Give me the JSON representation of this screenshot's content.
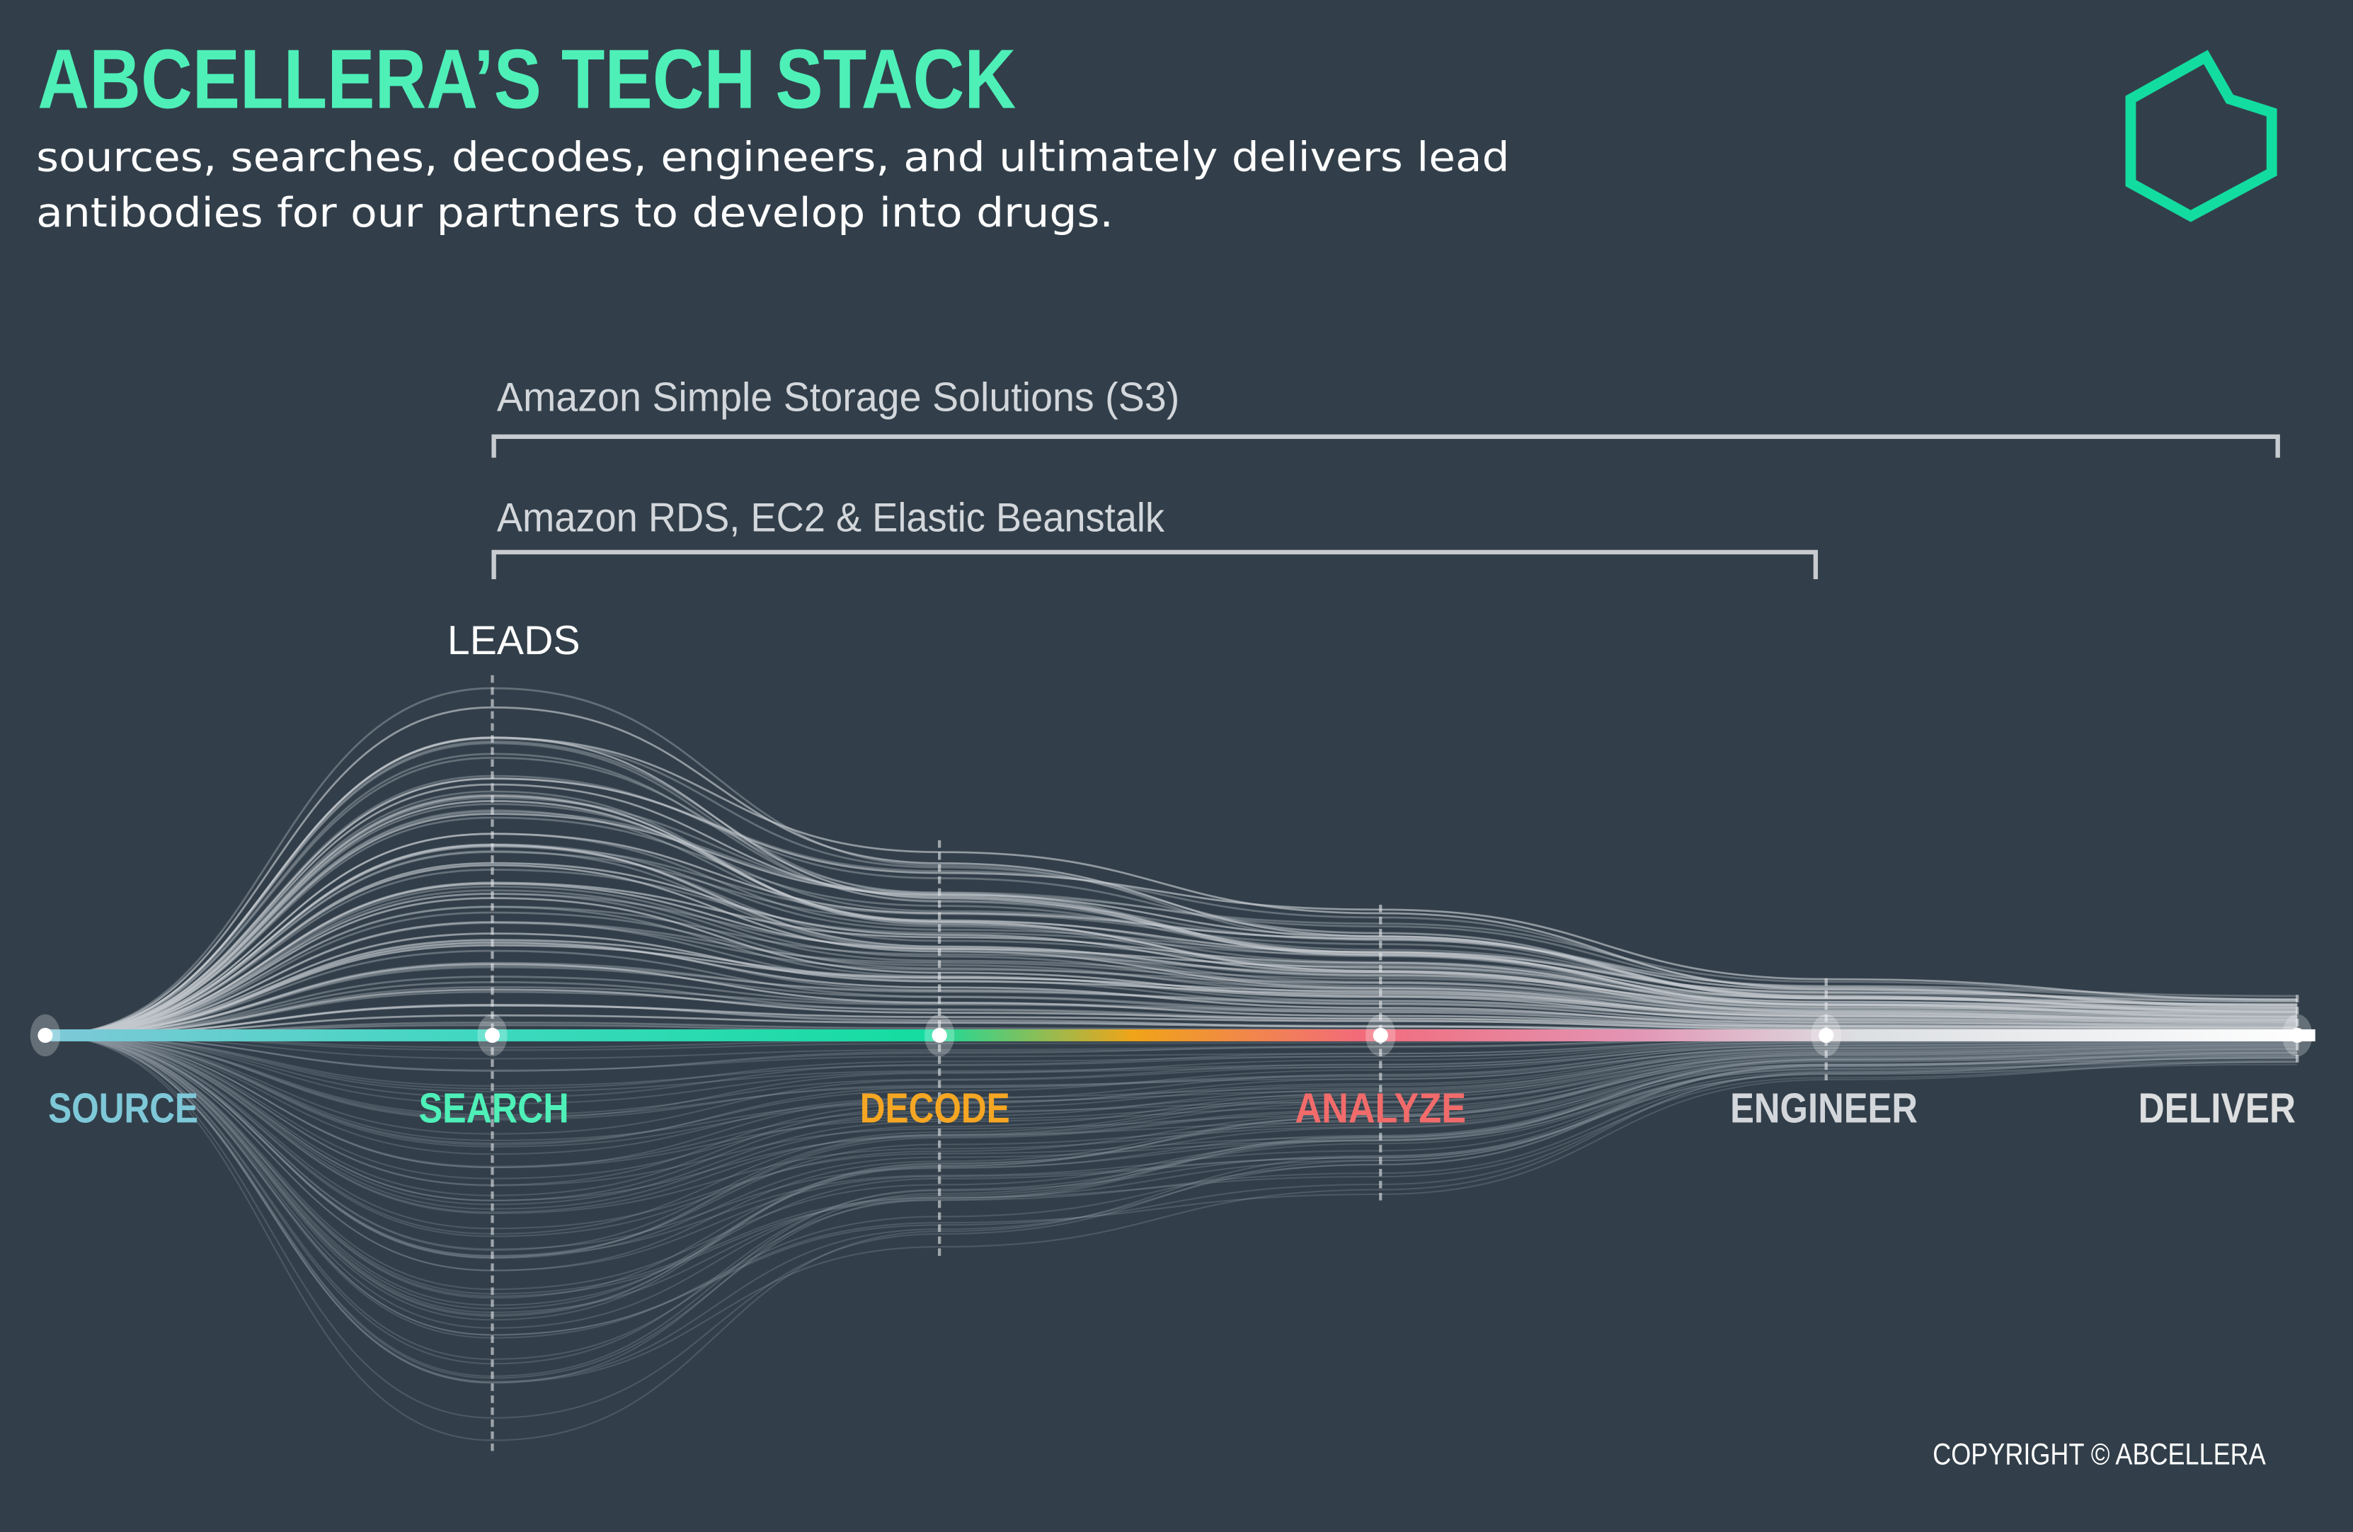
{
  "header": {
    "title": "ABCELLERA’S TECH STACK",
    "subtitle_line1": "sources, searches, decodes, engineers, and ultimately delivers lead",
    "subtitle_line2": "antibodies for our partners to develop into drugs.",
    "logo_icon": "hexagon-logo-icon",
    "accent_color": "#4ef0b8"
  },
  "brackets": [
    {
      "label": "Amazon Simple Storage Solutions (S3)",
      "from_stage": "SEARCH",
      "to_stage": "DELIVER"
    },
    {
      "label": "Amazon RDS, EC2 & Elastic Beanstalk",
      "from_stage": "SEARCH",
      "to_stage": "ENGINEER"
    }
  ],
  "leads_label": "LEADS",
  "stages": [
    {
      "label": "SOURCE",
      "color": "#7ec8d8"
    },
    {
      "label": "SEARCH",
      "color": "#4ef0b8"
    },
    {
      "label": "DECODE",
      "color": "#f5a623"
    },
    {
      "label": "ANALYZE",
      "color": "#f26b6b"
    },
    {
      "label": "ENGINEER",
      "color": "#d3d7db"
    },
    {
      "label": "DELIVER",
      "color": "#dcdee0"
    }
  ],
  "footer": {
    "copyright": "COPYRIGHT © ABCELLERA"
  }
}
